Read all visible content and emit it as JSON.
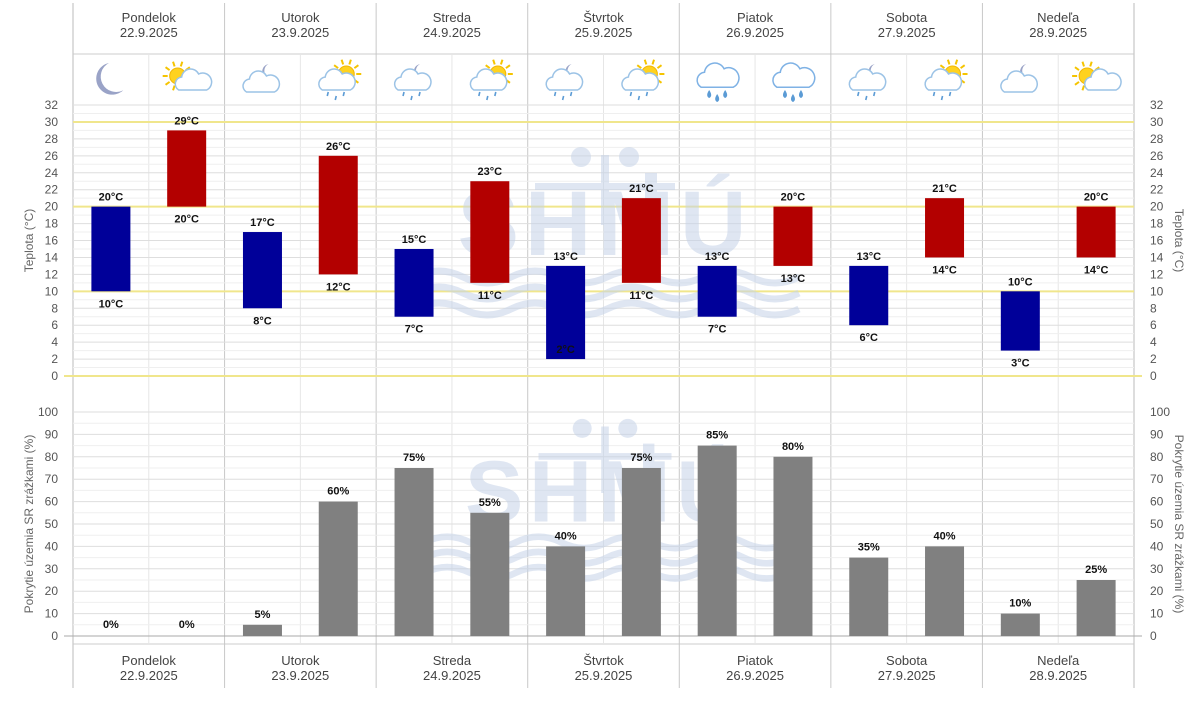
{
  "days": [
    {
      "name": "Pondelok",
      "date": "22.9.2025"
    },
    {
      "name": "Utorok",
      "date": "23.9.2025"
    },
    {
      "name": "Streda",
      "date": "24.9.2025"
    },
    {
      "name": "Štvrtok",
      "date": "25.9.2025"
    },
    {
      "name": "Piatok",
      "date": "26.9.2025"
    },
    {
      "name": "Sobota",
      "date": "27.9.2025"
    },
    {
      "name": "Nedeľa",
      "date": "28.9.2025"
    }
  ],
  "icons": [
    [
      "moon-icon",
      "sun-cloud-icon"
    ],
    [
      "moon-cloud-icon",
      "sun-cloud-rain-icon"
    ],
    [
      "moon-cloud-rain-icon",
      "sun-cloud-rain-icon"
    ],
    [
      "moon-cloud-rain-icon",
      "sun-cloud-rain-icon"
    ],
    [
      "cloud-heavy-rain-icon",
      "cloud-heavy-rain-icon"
    ],
    [
      "moon-cloud-rain-icon",
      "sun-cloud-rain-icon"
    ],
    [
      "moon-cloud-icon",
      "sun-cloud-icon"
    ]
  ],
  "colors": {
    "night_bar": "#000099",
    "day_bar": "#b30000",
    "precip_bar": "#808080",
    "highlight_line": "#f0e68c",
    "watermark": "#c5d3e8"
  },
  "watermark_text": "SHMÚ",
  "chart_data": [
    {
      "type": "bar",
      "name": "temperature",
      "ylabel": "Teplota (°C)",
      "ylim": [
        0,
        32
      ],
      "yticks": [
        0,
        2,
        4,
        6,
        8,
        10,
        12,
        14,
        16,
        18,
        20,
        22,
        24,
        26,
        28,
        30,
        32
      ],
      "highlight_lines": [
        10,
        20,
        30
      ],
      "unit": "°C",
      "series": [
        {
          "lows": [
            10,
            8,
            7,
            2,
            7,
            6,
            3
          ],
          "highs": [
            20,
            17,
            15,
            13,
            13,
            13,
            10
          ]
        },
        {
          "lows": [
            20,
            12,
            11,
            11,
            13,
            14,
            14
          ],
          "highs": [
            29,
            26,
            23,
            21,
            20,
            21,
            20
          ]
        }
      ]
    },
    {
      "type": "bar",
      "name": "precipitation",
      "ylabel": "Pokrytie územia SR zrážkami (%)",
      "ylim": [
        0,
        100
      ],
      "yticks": [
        0,
        10,
        20,
        30,
        40,
        50,
        60,
        70,
        80,
        90,
        100
      ],
      "unit": "%",
      "series": [
        {
          "values": [
            0,
            5,
            75,
            40,
            85,
            35,
            10
          ]
        },
        {
          "values": [
            0,
            60,
            55,
            75,
            80,
            40,
            25
          ]
        }
      ]
    }
  ]
}
